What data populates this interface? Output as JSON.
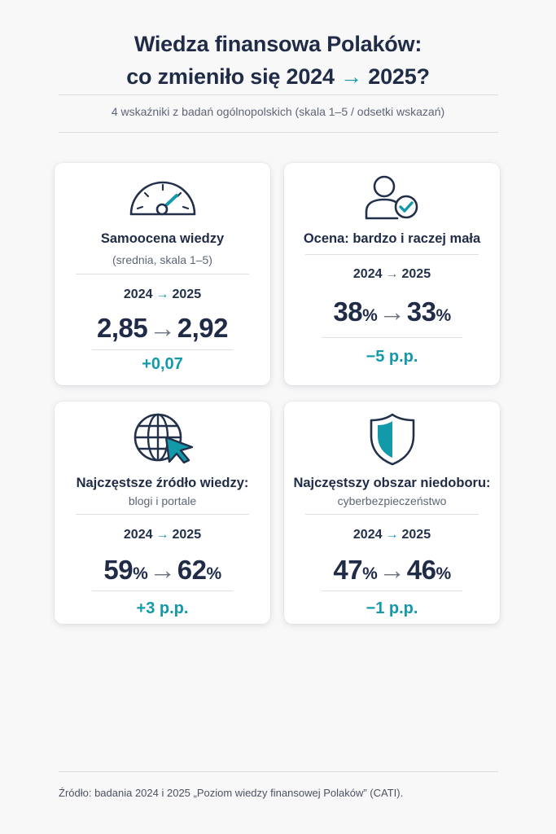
{
  "title": {
    "line1": "Wiedza finansowa Polaków:",
    "line2_prefix": "co zmieniło się 2024",
    "arrow": "→",
    "line2_suffix": "2025?"
  },
  "subtitle": "4 wskaźniki z badań ogólnopolskich (skala 1–5 / odsetki wskazań)",
  "cards": [
    {
      "icon": "speedometer-icon",
      "heading": "Samoocena wiedzy",
      "sub": "(srednia, skala 1–5)",
      "year_from": "2024",
      "year_to": "2025",
      "value_from": "2,85",
      "value_to": "2,92",
      "unit": "",
      "change": "+0,07"
    },
    {
      "icon": "user-check-icon",
      "heading": "Ocena: bardzo i raczej mała",
      "sub": "",
      "year_from": "2024",
      "year_to": "2025",
      "value_from": "38",
      "value_to": "33",
      "unit": "%",
      "change": "−5 p.p."
    },
    {
      "icon": "globe-cursor-icon",
      "heading": "Najczęstsze źródło wiedzy:",
      "sub": "blogi i portale",
      "year_from": "2024",
      "year_to": "2025",
      "value_from": "59",
      "value_to": "62",
      "unit": "%",
      "change": "+3 p.p."
    },
    {
      "icon": "shield-icon",
      "heading": "Najczęstszy obszar niedoboru:",
      "sub": "cyberbezpieczeństwo",
      "year_from": "2024",
      "year_to": "2025",
      "value_from": "47",
      "value_to": "46",
      "unit": "%",
      "change": "−1 p.p."
    }
  ],
  "arrow": "→",
  "source": "Źródło: badania 2024 i 2025 „Poziom wiedzy finansowej Polaków” (CATI).",
  "colors": {
    "accent": "#139aaa",
    "navy": "#1f2b47",
    "background": "#f8f8f9"
  }
}
